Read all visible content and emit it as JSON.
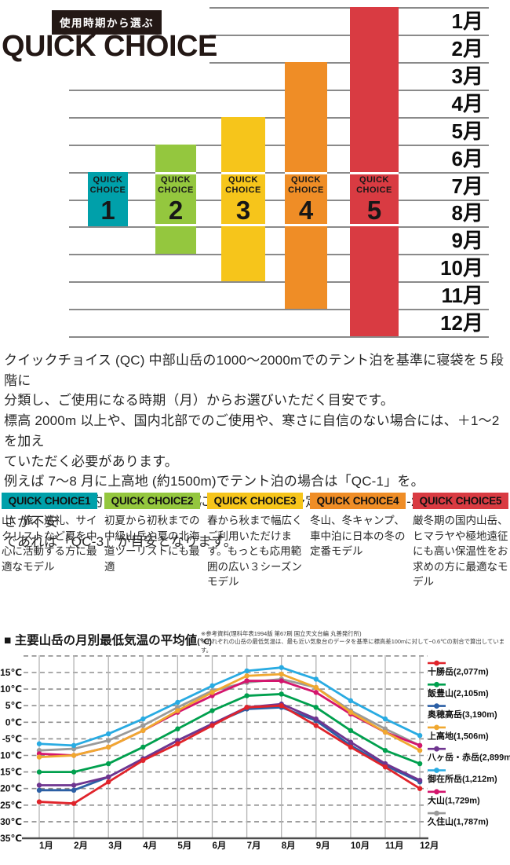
{
  "header": {
    "tag": "使用時期から選ぶ",
    "title": "QUICK CHOICE"
  },
  "top_chart": {
    "months": [
      "1月",
      "2月",
      "3月",
      "4月",
      "5月",
      "6月",
      "7月",
      "8月",
      "9月",
      "10月",
      "11月",
      "12月"
    ],
    "bars": [
      {
        "name": "QUICK CHOICE 1",
        "label_top": "QUICK",
        "label_mid": "CHOICE",
        "number": "1",
        "color": "#00a0aa",
        "start_month": 7,
        "end_month": 8
      },
      {
        "name": "QUICK CHOICE 2",
        "label_top": "QUICK",
        "label_mid": "CHOICE",
        "number": "2",
        "color": "#94c73e",
        "start_month": 6,
        "end_month": 9
      },
      {
        "name": "QUICK CHOICE 3",
        "label_top": "QUICK",
        "label_mid": "CHOICE",
        "number": "3",
        "color": "#f6c51b",
        "start_month": 5,
        "end_month": 10
      },
      {
        "name": "QUICK CHOICE 4",
        "label_top": "QUICK",
        "label_mid": "CHOICE",
        "number": "4",
        "color": "#ef8d26",
        "start_month": 3,
        "end_month": 11
      },
      {
        "name": "QUICK CHOICE 5",
        "label_top": "QUICK",
        "label_mid": "CHOICE",
        "number": "5",
        "color": "#d93b42",
        "start_month": 1,
        "end_month": 12
      }
    ]
  },
  "intro": {
    "lines": [
      "クイックチョイス (QC) 中部山岳の1000〜2000mでのテント泊を基準に寝袋を５段階に",
      "分類し、ご使用になる時期（月）からお選びいただく目安です。",
      "標高 2000m 以上や、国内北部でのご使用や、寒さに自信のない場合には、＋1〜2 を加え",
      "ていただく必要があります。",
      "例えば 7〜8 月に上高地 (約1500m)でテント泊の場合は「QC-1」を。",
      "山行中に涸沢(約 2300m) やさらに上部での宿泊予定であれば「QC-2」を。かつ寒さが不安",
      "であれば「QC-3」が目安となります。"
    ]
  },
  "choices": [
    {
      "header": "QUICK CHOICE1",
      "color": "#00a0aa",
      "desc": "山、旅、巡礼、サイクリストなど夏を中心に活動する方に最適なモデル"
    },
    {
      "header": "QUICK CHOICE2",
      "color": "#94c73e",
      "desc": "初夏から初秋までの中級山岳や夏の北海道ツーリストにも最適"
    },
    {
      "header": "QUICK CHOICE3",
      "color": "#f6c51b",
      "desc": "春から秋まで幅広くご利用いただけます。もっとも応用範囲の広い３シーズンモデル"
    },
    {
      "header": "QUICK CHOICE4",
      "color": "#ef8d26",
      "desc": "冬山、冬キャンプ、車中泊に日本の冬の定番モデル"
    },
    {
      "header": "QUICK CHOICE5",
      "color": "#d93b42",
      "desc": "厳冬期の国内山岳、ヒマラヤや極地遠征にも高い保温性をお求めの方に最適なモデル"
    }
  ],
  "temp_section": {
    "bullet": "■",
    "title": " 主要山岳の月別最低気温の平均値",
    "title_unit": "(℃)",
    "notes": [
      "※参考資料(理科年表1994版 第67刷 国立天文台編 丸善発行所)",
      "※それぞれの山岳の最低気温は、最も近い気象台のデータを基準に標高差100mに対して−0.6℃の割合で算出しています。"
    ]
  },
  "chart_data": {
    "type": "line",
    "title": "主要山岳の月別最低気温の平均値(℃)",
    "categories": [
      "1月",
      "2月",
      "3月",
      "4月",
      "5月",
      "6月",
      "7月",
      "8月",
      "9月",
      "10月",
      "11月",
      "12月"
    ],
    "ylabel": "気温(℃)",
    "ylim": [
      -35,
      20
    ],
    "yticks": [
      15,
      10,
      5,
      0,
      -5,
      -10,
      -15,
      -20,
      -25,
      -30,
      -35
    ],
    "grid": "dashed horizontal + solid vertical month lines",
    "legend_position": "right",
    "series": [
      {
        "name": "十勝岳(2,077m)",
        "color": "#e0242b",
        "values": [
          -24,
          -24.5,
          -18,
          -11.5,
          -6.5,
          -1,
          4.5,
          5,
          -1,
          -7.5,
          -13.5,
          -20
        ]
      },
      {
        "name": "飯豊山(2,105m)",
        "color": "#00a04e",
        "values": [
          -15,
          -15,
          -12.5,
          -7.5,
          -2,
          3.5,
          8,
          8.5,
          4.5,
          -2.5,
          -8.5,
          -12.5
        ]
      },
      {
        "name": "奥穂高岳(3,190m)",
        "color": "#2b5fa5",
        "values": [
          -20.5,
          -20.5,
          -16.5,
          -11,
          -5.5,
          -0.5,
          4,
          4.5,
          0.5,
          -7,
          -13,
          -18
        ]
      },
      {
        "name": "上高地(1,506m)",
        "color": "#f0a830",
        "values": [
          -10.5,
          -10,
          -7.5,
          -2.5,
          3.5,
          9,
          14,
          14.5,
          10.5,
          3,
          -3,
          -8.5
        ]
      },
      {
        "name": "八ヶ岳・赤岳(2,899m)",
        "color": "#6f3590",
        "values": [
          -19,
          -19,
          -16.5,
          -11,
          -5.5,
          -0.5,
          4.5,
          5.5,
          1,
          -6,
          -12.5,
          -17.5
        ]
      },
      {
        "name": "御在所岳(1,212m)",
        "color": "#29abe2",
        "values": [
          -6.5,
          -7,
          -3.5,
          1,
          6,
          11,
          15.5,
          16.5,
          13,
          6.5,
          1,
          -4
        ]
      },
      {
        "name": "大山(1,729m)",
        "color": "#d4156d",
        "values": [
          -9.5,
          -10,
          -7.5,
          -2.5,
          3,
          8,
          12.5,
          12.5,
          9,
          2.5,
          -3,
          -7
        ]
      },
      {
        "name": "久住山(1,787m)",
        "color": "#9a9a9a",
        "values": [
          -8.5,
          -8,
          -5.5,
          -1,
          4.5,
          9.5,
          12,
          13,
          10.5,
          3.5,
          -2,
          -7
        ]
      }
    ]
  }
}
